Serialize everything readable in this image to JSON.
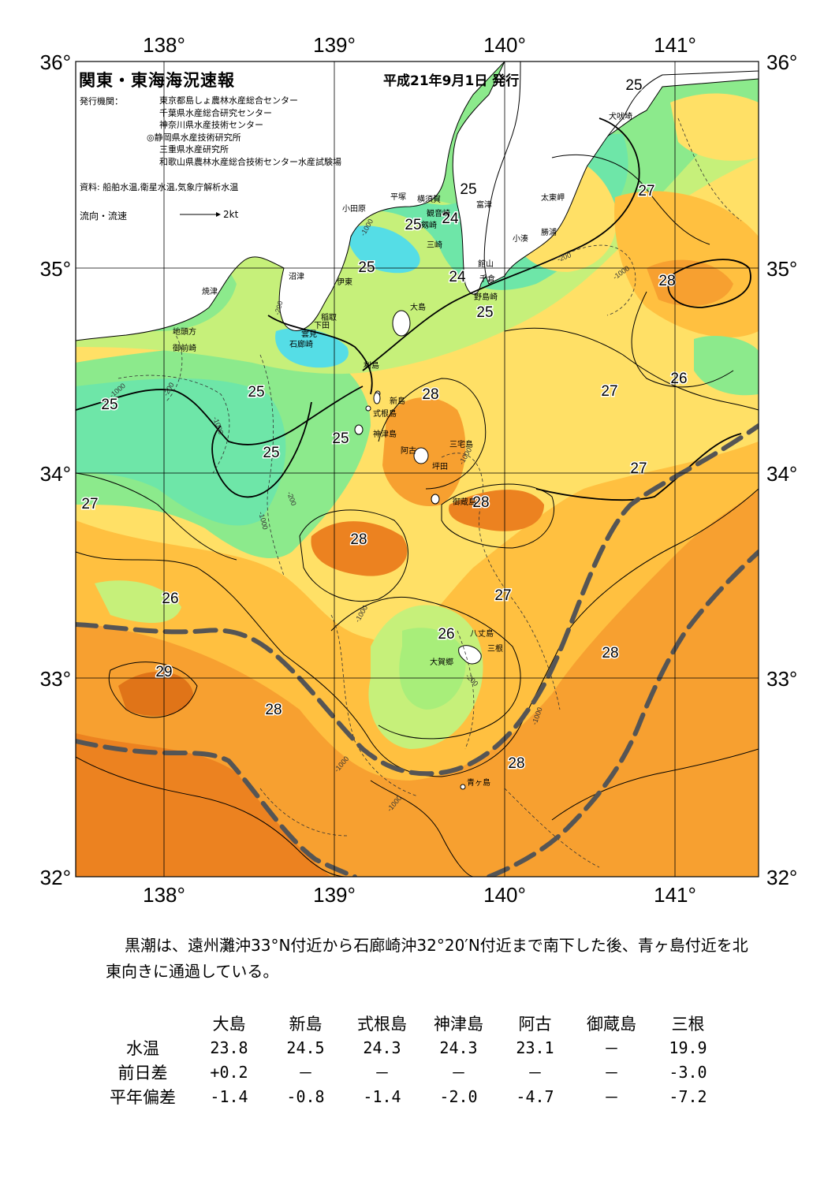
{
  "header": {
    "title": "関東・東海海況速報",
    "issued": "平成21年9月1日 発行",
    "agency_label": "発行機関：",
    "agencies": [
      "東京都島しょ農林水産総合センター",
      "千葉県水産総合研究センター",
      "神奈川県水産技術センター",
      "◎静岡県水産技術研究所",
      "三重県水産研究所",
      "和歌山県農林水産総合技術センター水産試験場"
    ],
    "sources": "資料: 船舶水温,衛星水温,気象庁解析水温",
    "flow_label": "流向・流速",
    "flow_scale": "2kt"
  },
  "map": {
    "lon_labels": [
      "138°",
      "139°",
      "140°",
      "141°"
    ],
    "lat_labels": [
      "36°",
      "35°",
      "34°",
      "33°",
      "32°"
    ],
    "colors": {
      "cold": "#55dde6",
      "cool": "#6ee6a8",
      "mid_green": "#8cea8c",
      "light_green": "#c6f07a",
      "yellow": "#ffe066",
      "light_orange": "#ffc040",
      "orange": "#f7a030",
      "dark_orange": "#ec8220",
      "land": "#ffffff",
      "kuroshio_axis": "#555555"
    },
    "isotherm_labels": [
      "25",
      "24",
      "25",
      "25",
      "24",
      "25",
      "27",
      "28",
      "26",
      "27",
      "25",
      "25",
      "25",
      "28",
      "25",
      "27",
      "27",
      "28",
      "28",
      "26",
      "27",
      "26",
      "28",
      "29",
      "28",
      "28",
      "25"
    ],
    "depth_labels": [
      "-1000",
      "-200",
      "-1000",
      "-200",
      "-1000",
      "-200",
      "-1000",
      "-200",
      "-1000",
      "-1000",
      "-1000",
      "-1000",
      "-200",
      "-1000",
      "-1000"
    ],
    "places": [
      "犬吠埼",
      "太東岬",
      "勝浦",
      "小湊",
      "富津",
      "館山",
      "千倉",
      "野島崎",
      "横須賀",
      "観音崎",
      "剱崎",
      "三崎",
      "平塚",
      "小田原",
      "沼津",
      "伊東",
      "稲取",
      "下田",
      "雲見",
      "石廊崎",
      "焼津",
      "地頭方",
      "御前崎",
      "大島",
      "利島",
      "新島",
      "式根島",
      "神津島",
      "三宅島",
      "阿古",
      "坪田",
      "御蔵島",
      "八丈島",
      "三根",
      "大賀郷",
      "青ヶ島"
    ]
  },
  "summary": "黒潮は、遠州灘沖33°N付近から石廊崎沖32°20′N付近まで南下した後、青ヶ島付近を北東向きに通過している。",
  "observations": {
    "stations": [
      "大島",
      "新島",
      "式根島",
      "神津島",
      "阿古",
      "御蔵島",
      "三根"
    ],
    "rows": [
      {
        "label": "水温",
        "values": [
          "23.8",
          "24.5",
          "24.3",
          "24.3",
          "23.1",
          "－",
          "19.9"
        ]
      },
      {
        "label": "前日差",
        "values": [
          "+0.2",
          "－",
          "－",
          "－",
          "－",
          "－",
          "-3.0"
        ]
      },
      {
        "label": "平年偏差",
        "values": [
          "-1.4",
          "-0.8",
          "-1.4",
          "-2.0",
          "-4.7",
          "－",
          "-7.2"
        ]
      }
    ]
  }
}
